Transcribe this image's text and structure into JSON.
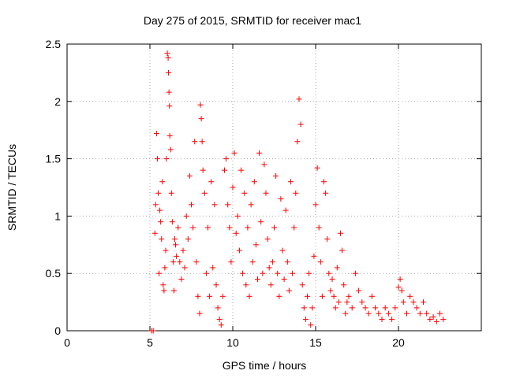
{
  "chart_data": {
    "type": "scatter",
    "title": "Day 275 of 2015, SRMTID for receiver mac1",
    "xlabel": "GPS time / hours",
    "ylabel": "SRMTID / TECUs",
    "xlim": [
      0,
      25
    ],
    "ylim": [
      0,
      2.5
    ],
    "xticks": [
      "0",
      "5",
      "10",
      "15",
      "20"
    ],
    "yticks": [
      "0",
      "0.5",
      "1",
      "1.5",
      "2",
      "2.5"
    ],
    "grid": true,
    "marker": "plus",
    "color": "#ff0000",
    "series": [
      {
        "values_approx_description": "dense points from ~5.1h to ~22.8h",
        "points": [
          [
            5.1,
            0.0
          ],
          [
            5.2,
            0.0
          ],
          [
            5.3,
            0.85
          ],
          [
            5.35,
            1.1
          ],
          [
            5.4,
            1.72
          ],
          [
            5.45,
            1.5
          ],
          [
            5.5,
            1.2
          ],
          [
            5.55,
            0.5
          ],
          [
            5.6,
            1.05
          ],
          [
            5.65,
            0.95
          ],
          [
            5.7,
            0.8
          ],
          [
            5.75,
            1.3
          ],
          [
            5.8,
            0.4
          ],
          [
            5.85,
            0.35
          ],
          [
            5.9,
            0.55
          ],
          [
            5.95,
            0.7
          ],
          [
            6.0,
            1.5
          ],
          [
            6.05,
            2.42
          ],
          [
            6.1,
            2.38
          ],
          [
            6.12,
            2.25
          ],
          [
            6.15,
            2.08
          ],
          [
            6.18,
            1.96
          ],
          [
            6.2,
            1.7
          ],
          [
            6.25,
            1.58
          ],
          [
            6.3,
            1.2
          ],
          [
            6.35,
            0.95
          ],
          [
            6.4,
            0.6
          ],
          [
            6.45,
            0.35
          ],
          [
            6.5,
            0.8
          ],
          [
            6.55,
            0.75
          ],
          [
            6.6,
            0.65
          ],
          [
            6.7,
            0.9
          ],
          [
            6.8,
            0.6
          ],
          [
            6.9,
            0.45
          ],
          [
            7.0,
            0.7
          ],
          [
            7.1,
            0.55
          ],
          [
            7.2,
            1.0
          ],
          [
            7.3,
            0.8
          ],
          [
            7.4,
            1.35
          ],
          [
            7.5,
            1.1
          ],
          [
            7.6,
            0.9
          ],
          [
            7.7,
            1.65
          ],
          [
            7.8,
            0.6
          ],
          [
            7.9,
            0.3
          ],
          [
            8.0,
            0.15
          ],
          [
            8.05,
            1.97
          ],
          [
            8.1,
            1.85
          ],
          [
            8.15,
            1.65
          ],
          [
            8.2,
            1.4
          ],
          [
            8.3,
            1.2
          ],
          [
            8.4,
            0.5
          ],
          [
            8.5,
            0.9
          ],
          [
            8.6,
            0.3
          ],
          [
            8.7,
            1.3
          ],
          [
            8.8,
            0.55
          ],
          [
            8.9,
            1.1
          ],
          [
            9.0,
            0.4
          ],
          [
            9.1,
            0.2
          ],
          [
            9.2,
            0.1
          ],
          [
            9.3,
            0.05
          ],
          [
            9.4,
            0.3
          ],
          [
            9.5,
            1.4
          ],
          [
            9.6,
            1.5
          ],
          [
            9.7,
            1.1
          ],
          [
            9.8,
            0.9
          ],
          [
            9.9,
            0.6
          ],
          [
            10.0,
            1.25
          ],
          [
            10.1,
            1.55
          ],
          [
            10.2,
            0.85
          ],
          [
            10.3,
            1.0
          ],
          [
            10.4,
            0.7
          ],
          [
            10.5,
            1.4
          ],
          [
            10.6,
            0.5
          ],
          [
            10.7,
            1.2
          ],
          [
            10.8,
            0.4
          ],
          [
            10.9,
            0.9
          ],
          [
            11.0,
            0.3
          ],
          [
            11.1,
            1.1
          ],
          [
            11.2,
            0.6
          ],
          [
            11.3,
            1.3
          ],
          [
            11.4,
            0.75
          ],
          [
            11.5,
            0.45
          ],
          [
            11.6,
            1.55
          ],
          [
            11.7,
            0.95
          ],
          [
            11.8,
            0.5
          ],
          [
            11.9,
            1.45
          ],
          [
            12.0,
            1.2
          ],
          [
            12.1,
            0.8
          ],
          [
            12.2,
            0.55
          ],
          [
            12.3,
            0.4
          ],
          [
            12.4,
            0.6
          ],
          [
            12.5,
            0.9
          ],
          [
            12.6,
            1.35
          ],
          [
            12.7,
            0.5
          ],
          [
            12.8,
            0.3
          ],
          [
            12.9,
            1.15
          ],
          [
            13.0,
            0.7
          ],
          [
            13.1,
            0.45
          ],
          [
            13.2,
            1.05
          ],
          [
            13.3,
            0.6
          ],
          [
            13.4,
            0.35
          ],
          [
            13.5,
            1.3
          ],
          [
            13.6,
            0.5
          ],
          [
            13.7,
            0.9
          ],
          [
            13.8,
            1.2
          ],
          [
            13.9,
            1.65
          ],
          [
            14.0,
            2.02
          ],
          [
            14.1,
            1.8
          ],
          [
            14.2,
            0.4
          ],
          [
            14.3,
            0.2
          ],
          [
            14.4,
            0.1
          ],
          [
            14.5,
            0.3
          ],
          [
            14.6,
            0.5
          ],
          [
            14.7,
            0.05
          ],
          [
            14.8,
            0.2
          ],
          [
            14.9,
            0.65
          ],
          [
            15.0,
            1.1
          ],
          [
            15.1,
            1.42
          ],
          [
            15.2,
            0.9
          ],
          [
            15.3,
            0.6
          ],
          [
            15.4,
            0.3
          ],
          [
            15.5,
            1.3
          ],
          [
            15.6,
            1.2
          ],
          [
            15.7,
            0.8
          ],
          [
            15.8,
            0.5
          ],
          [
            15.9,
            0.35
          ],
          [
            16.0,
            0.45
          ],
          [
            16.1,
            0.3
          ],
          [
            16.2,
            0.2
          ],
          [
            16.3,
            0.55
          ],
          [
            16.4,
            0.25
          ],
          [
            16.5,
            0.85
          ],
          [
            16.6,
            0.7
          ],
          [
            16.7,
            0.4
          ],
          [
            16.8,
            0.15
          ],
          [
            16.9,
            0.25
          ],
          [
            17.0,
            0.3
          ],
          [
            17.2,
            0.2
          ],
          [
            17.4,
            0.5
          ],
          [
            17.6,
            0.35
          ],
          [
            17.8,
            0.25
          ],
          [
            18.0,
            0.2
          ],
          [
            18.2,
            0.15
          ],
          [
            18.4,
            0.3
          ],
          [
            18.6,
            0.2
          ],
          [
            18.8,
            0.15
          ],
          [
            19.0,
            0.1
          ],
          [
            19.2,
            0.2
          ],
          [
            19.4,
            0.15
          ],
          [
            19.6,
            0.1
          ],
          [
            19.8,
            0.2
          ],
          [
            20.0,
            0.38
          ],
          [
            20.1,
            0.45
          ],
          [
            20.2,
            0.35
          ],
          [
            20.3,
            0.25
          ],
          [
            20.5,
            0.15
          ],
          [
            20.7,
            0.3
          ],
          [
            20.9,
            0.25
          ],
          [
            21.1,
            0.2
          ],
          [
            21.3,
            0.15
          ],
          [
            21.5,
            0.25
          ],
          [
            21.7,
            0.15
          ],
          [
            21.9,
            0.1
          ],
          [
            22.1,
            0.12
          ],
          [
            22.3,
            0.08
          ],
          [
            22.5,
            0.15
          ],
          [
            22.7,
            0.1
          ]
        ]
      }
    ]
  }
}
